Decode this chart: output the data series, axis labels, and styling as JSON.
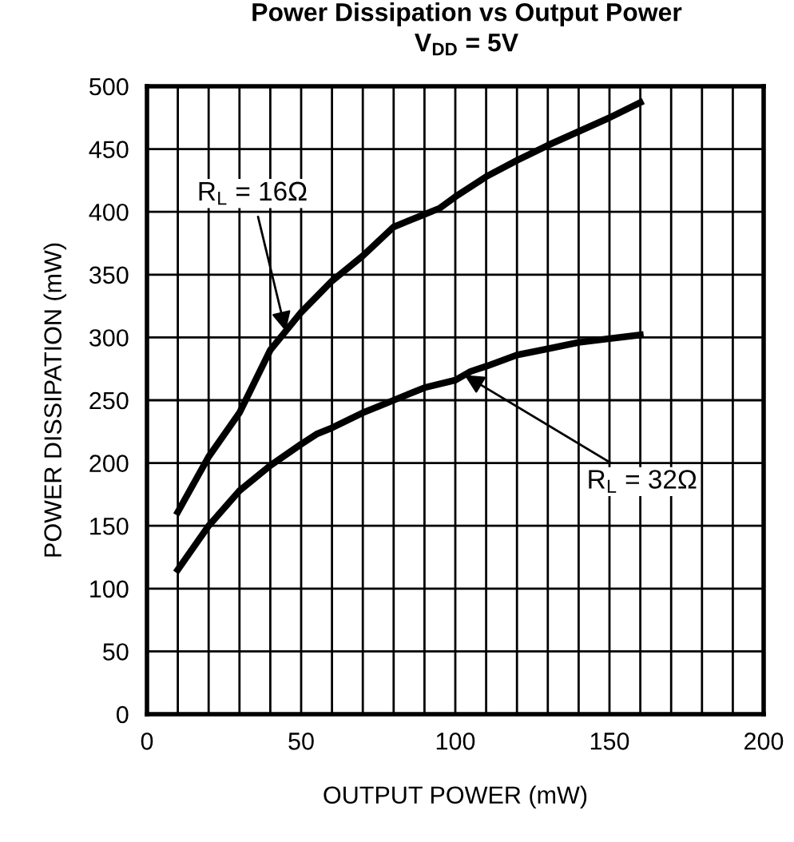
{
  "chart_data": {
    "type": "line",
    "title": "Power Dissipation vs Output Power",
    "subtitle": "V$_{DD}$ = 5V",
    "xlabel": "OUTPUT POWER (mW)",
    "ylabel": "POWER DISSIPATION (mW)",
    "series": [
      {
        "color": "#000000",
        "x": [
          10,
          20,
          30,
          40,
          50,
          60,
          70,
          80,
          90,
          95,
          100,
          110,
          120,
          130,
          140,
          150,
          160
        ],
        "values": [
          161,
          205,
          240,
          290,
          320,
          345,
          365,
          388,
          398,
          403,
          412,
          428,
          441,
          453,
          464,
          475,
          487
        ]
      },
      {
        "color": "#000000",
        "x": [
          10,
          20,
          30,
          40,
          50,
          55,
          60,
          70,
          80,
          90,
          100,
          105,
          110,
          120,
          130,
          140,
          150,
          160
        ],
        "values": [
          115,
          150,
          178,
          198,
          215,
          223,
          228,
          240,
          250,
          260,
          266,
          273,
          277,
          286,
          291,
          296,
          299,
          302
        ]
      }
    ],
    "annotations": [
      {
        "text": "R$_{L}$ = 16Ω",
        "x": 45,
        "y": 305
      },
      {
        "text": "R$_{L}$ = 32Ω",
        "x": 103,
        "y": 270
      }
    ],
    "xlim": [
      0,
      200
    ],
    "ylim": [
      0,
      500
    ],
    "xticks": [
      0,
      50,
      100,
      150,
      200
    ],
    "yticks": [
      0,
      50,
      100,
      150,
      200,
      250,
      300,
      350,
      400,
      450,
      500
    ],
    "grid": true,
    "legend": false,
    "marker": "none",
    "line_style": "solid"
  }
}
